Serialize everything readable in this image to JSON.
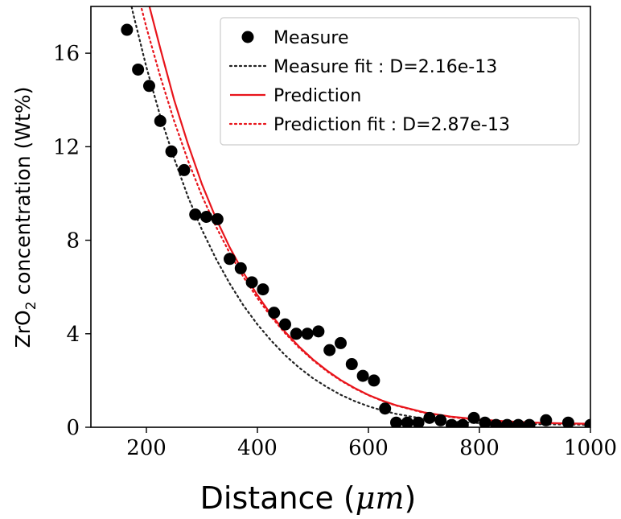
{
  "chart_data": {
    "type": "scatter",
    "xlabel_main": "Distance",
    "xlabel_unit": "μm",
    "ylabel_prefix": "ZrO",
    "ylabel_subscript": "2",
    "ylabel_suffix": " concentration (Wt%)",
    "xlim": [
      100,
      1000
    ],
    "ylim": [
      0,
      18
    ],
    "xticks": [
      200,
      400,
      600,
      800,
      1000
    ],
    "yticks": [
      0,
      4,
      8,
      12,
      16
    ],
    "grid": false,
    "legend_position": "top-right",
    "series": [
      {
        "name": "Measure",
        "kind": "scatter",
        "color": "#000000",
        "x": [
          165,
          185,
          205,
          225,
          245,
          268,
          288,
          308,
          328,
          350,
          370,
          390,
          410,
          430,
          450,
          470,
          490,
          510,
          530,
          550,
          570,
          590,
          610,
          630,
          650,
          670,
          690,
          710,
          730,
          750,
          770,
          790,
          810,
          830,
          850,
          870,
          890,
          920,
          960,
          1000
        ],
        "y": [
          17.0,
          15.3,
          14.6,
          13.1,
          11.8,
          11.0,
          9.1,
          9.0,
          8.9,
          7.2,
          6.8,
          6.2,
          5.9,
          4.9,
          4.4,
          4.0,
          4.0,
          4.1,
          3.3,
          3.6,
          2.7,
          2.2,
          2.0,
          0.8,
          0.2,
          0.2,
          0.2,
          0.4,
          0.3,
          0.1,
          0.1,
          0.4,
          0.2,
          0.1,
          0.1,
          0.1,
          0.1,
          0.3,
          0.2,
          0.1
        ]
      },
      {
        "name": "Measure fit : D=2.16e-13",
        "kind": "line",
        "style": "dotted",
        "color": "#222222",
        "x": [
          155,
          175,
          200,
          225,
          250,
          275,
          300,
          325,
          350,
          375,
          400,
          425,
          450,
          475,
          500,
          525,
          550,
          575,
          600,
          625,
          650,
          700,
          750,
          800,
          850,
          900,
          950,
          1000
        ],
        "y": [
          20.0,
          17.8,
          15.4,
          13.3,
          11.5,
          9.85,
          8.45,
          7.22,
          6.15,
          5.2,
          4.4,
          3.7,
          3.08,
          2.55,
          2.1,
          1.72,
          1.39,
          1.12,
          0.9,
          0.72,
          0.57,
          0.36,
          0.24,
          0.18,
          0.15,
          0.13,
          0.12,
          0.11
        ]
      },
      {
        "name": "Prediction",
        "kind": "line",
        "style": "solid",
        "color": "#e8141b",
        "x": [
          200,
          225,
          250,
          275,
          300,
          325,
          350,
          375,
          400,
          425,
          450,
          475,
          500,
          525,
          550,
          575,
          600,
          625,
          650,
          700,
          750,
          800,
          850,
          900,
          950,
          1000
        ],
        "y": [
          18.5,
          16.2,
          14.0,
          12.1,
          10.4,
          8.95,
          7.7,
          6.6,
          5.65,
          4.8,
          4.08,
          3.45,
          2.9,
          2.43,
          2.02,
          1.68,
          1.38,
          1.14,
          0.94,
          0.64,
          0.45,
          0.33,
          0.25,
          0.2,
          0.17,
          0.15
        ]
      },
      {
        "name": "Prediction fit : D=2.87e-13",
        "kind": "line",
        "style": "dotted",
        "color": "#e8141b",
        "x": [
          185,
          200,
          225,
          250,
          275,
          300,
          325,
          350,
          375,
          400,
          425,
          450,
          475,
          500,
          525,
          550,
          575,
          600,
          625,
          650,
          700,
          750,
          800,
          850,
          900,
          950,
          1000
        ],
        "y": [
          18.5,
          17.1,
          15.0,
          13.1,
          11.4,
          9.9,
          8.6,
          7.45,
          6.42,
          5.52,
          4.72,
          4.02,
          3.4,
          2.87,
          2.4,
          2.0,
          1.66,
          1.37,
          1.13,
          0.93,
          0.62,
          0.43,
          0.31,
          0.24,
          0.19,
          0.16,
          0.14
        ]
      }
    ]
  }
}
